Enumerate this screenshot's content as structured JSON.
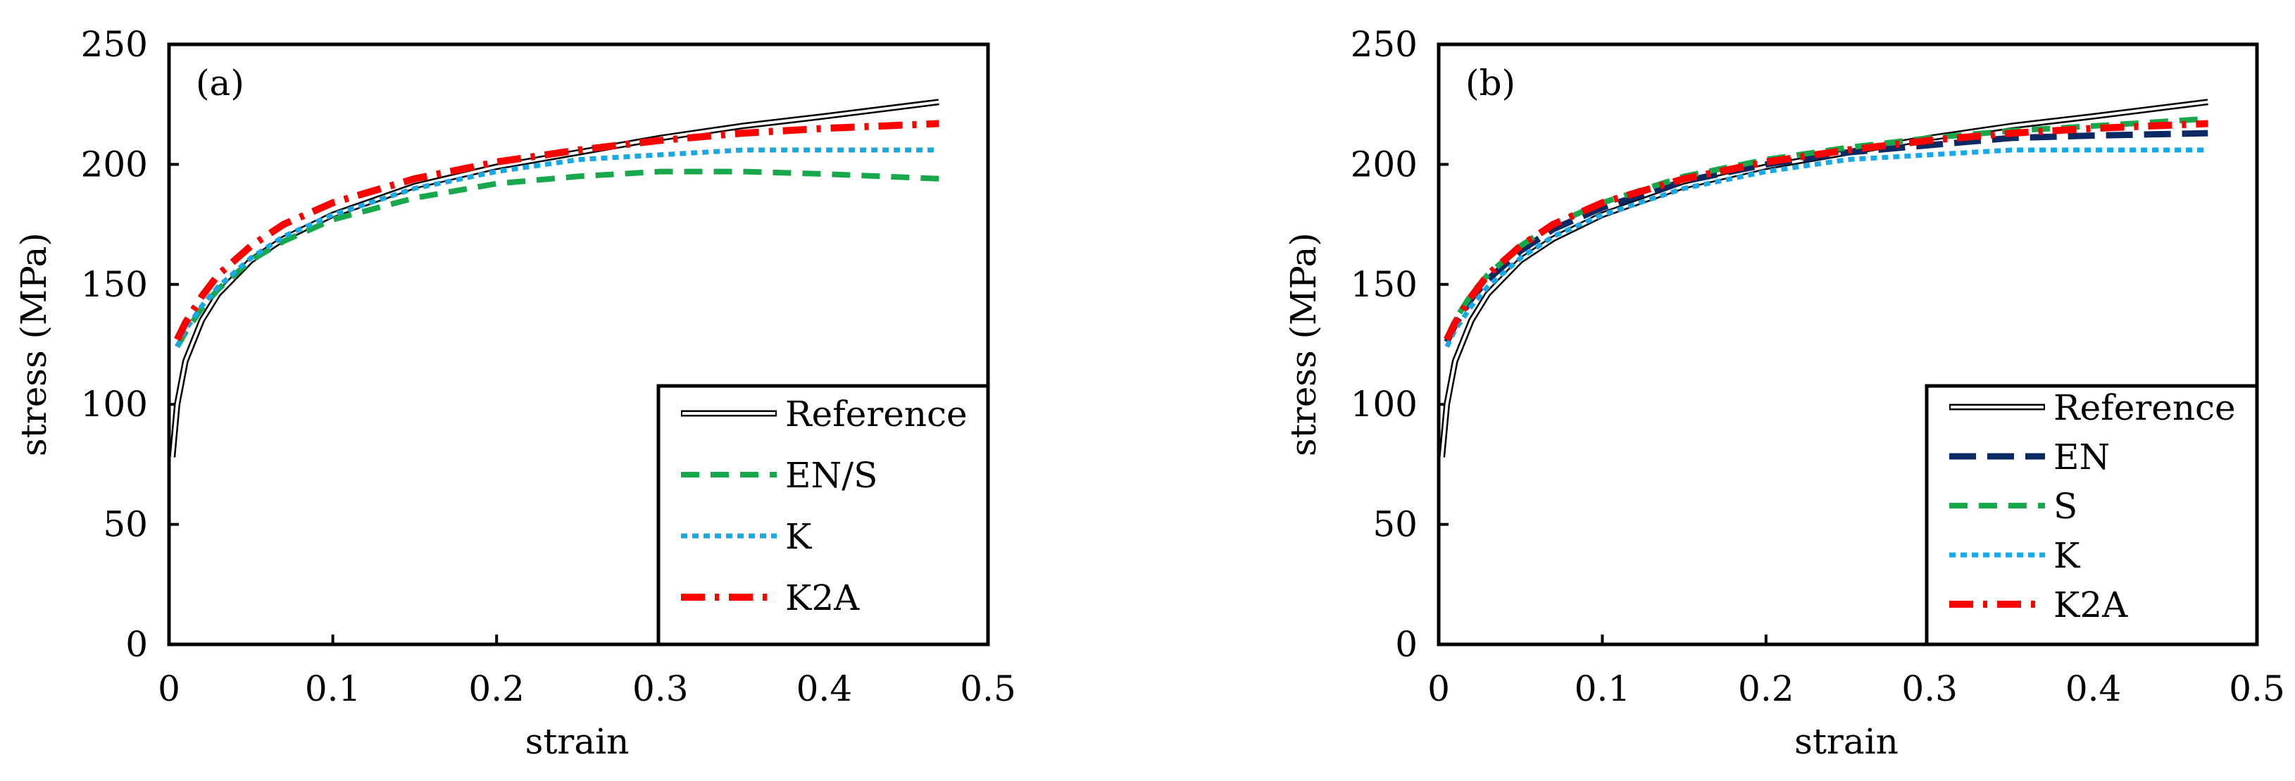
{
  "colors": {
    "reference": "#000000",
    "en": "#0b2a63",
    "ens": "#17a84c",
    "s": "#17a84c",
    "k": "#19a8e6",
    "k2a": "#ff0000"
  },
  "chart_data": [
    {
      "type": "line",
      "panel_label": "(a)",
      "xlabel": "strain",
      "ylabel": "stress (MPa)",
      "xlim": [
        0,
        0.5
      ],
      "ylim": [
        0,
        250
      ],
      "xticks": [
        0,
        0.1,
        0.2,
        0.3,
        0.4,
        0.5
      ],
      "yticks": [
        0,
        50,
        100,
        150,
        200,
        250
      ],
      "xtick_labels": [
        "0",
        "0.1",
        "0.2",
        "0.3",
        "0.4",
        "0.5"
      ],
      "ytick_labels": [
        "0",
        "50",
        "100",
        "150",
        "200",
        "250"
      ],
      "legend_position": "bottom-right",
      "series": [
        {
          "name": "Reference",
          "style": "double",
          "color_key": "reference",
          "x": [
            0.002,
            0.005,
            0.01,
            0.02,
            0.03,
            0.05,
            0.07,
            0.1,
            0.15,
            0.2,
            0.25,
            0.3,
            0.35,
            0.4,
            0.47
          ],
          "y": [
            78,
            100,
            118,
            135,
            146,
            160,
            169,
            179,
            191,
            199,
            205,
            211,
            216,
            220,
            226
          ]
        },
        {
          "name": "EN/S",
          "style": "dash",
          "color_key": "ens",
          "x": [
            0.005,
            0.01,
            0.02,
            0.03,
            0.05,
            0.07,
            0.1,
            0.15,
            0.2,
            0.25,
            0.3,
            0.35,
            0.4,
            0.47
          ],
          "y": [
            124,
            130,
            140,
            148,
            160,
            168,
            177,
            186,
            192,
            195,
            197,
            197,
            196,
            194
          ]
        },
        {
          "name": "K",
          "style": "dot",
          "color_key": "k",
          "x": [
            0.005,
            0.01,
            0.02,
            0.03,
            0.05,
            0.07,
            0.1,
            0.15,
            0.2,
            0.25,
            0.3,
            0.35,
            0.4,
            0.47
          ],
          "y": [
            124,
            131,
            141,
            149,
            161,
            170,
            179,
            190,
            197,
            202,
            204,
            206,
            206,
            206
          ]
        },
        {
          "name": "K2A",
          "style": "dashdot",
          "color_key": "k2a",
          "x": [
            0.005,
            0.01,
            0.02,
            0.03,
            0.05,
            0.07,
            0.1,
            0.15,
            0.2,
            0.25,
            0.3,
            0.35,
            0.4,
            0.47
          ],
          "y": [
            127,
            134,
            145,
            154,
            166,
            175,
            184,
            194,
            201,
            206,
            210,
            213,
            215,
            217
          ]
        }
      ]
    },
    {
      "type": "line",
      "panel_label": "(b)",
      "xlabel": "strain",
      "ylabel": "stress (MPa)",
      "xlim": [
        0,
        0.5
      ],
      "ylim": [
        0,
        250
      ],
      "xticks": [
        0,
        0.1,
        0.2,
        0.3,
        0.4,
        0.5
      ],
      "yticks": [
        0,
        50,
        100,
        150,
        200,
        250
      ],
      "xtick_labels": [
        "0",
        "0.1",
        "0.2",
        "0.3",
        "0.4",
        "0.5"
      ],
      "ytick_labels": [
        "0",
        "50",
        "100",
        "150",
        "200",
        "250"
      ],
      "legend_position": "bottom-right",
      "series": [
        {
          "name": "Reference",
          "style": "double",
          "color_key": "reference",
          "x": [
            0.002,
            0.005,
            0.01,
            0.02,
            0.03,
            0.05,
            0.07,
            0.1,
            0.15,
            0.2,
            0.25,
            0.3,
            0.35,
            0.4,
            0.47
          ],
          "y": [
            78,
            100,
            118,
            135,
            146,
            160,
            169,
            179,
            191,
            199,
            205,
            211,
            216,
            220,
            226
          ]
        },
        {
          "name": "EN",
          "style": "longdash",
          "color_key": "en",
          "x": [
            0.005,
            0.01,
            0.02,
            0.03,
            0.05,
            0.07,
            0.1,
            0.15,
            0.2,
            0.25,
            0.3,
            0.35,
            0.4,
            0.47
          ],
          "y": [
            126,
            133,
            144,
            152,
            164,
            173,
            182,
            193,
            200,
            205,
            208,
            211,
            212,
            213
          ]
        },
        {
          "name": "S",
          "style": "dash",
          "color_key": "s",
          "x": [
            0.005,
            0.01,
            0.02,
            0.03,
            0.05,
            0.07,
            0.1,
            0.15,
            0.2,
            0.25,
            0.3,
            0.35,
            0.4,
            0.47
          ],
          "y": [
            127,
            135,
            146,
            154,
            166,
            175,
            184,
            195,
            202,
            207,
            211,
            214,
            216,
            219
          ]
        },
        {
          "name": "K",
          "style": "dot",
          "color_key": "k",
          "x": [
            0.005,
            0.01,
            0.02,
            0.03,
            0.05,
            0.07,
            0.1,
            0.15,
            0.2,
            0.25,
            0.3,
            0.35,
            0.4,
            0.47
          ],
          "y": [
            124,
            131,
            141,
            149,
            161,
            170,
            179,
            190,
            197,
            202,
            204,
            206,
            206,
            206
          ]
        },
        {
          "name": "K2A",
          "style": "dashdot",
          "color_key": "k2a",
          "x": [
            0.005,
            0.01,
            0.02,
            0.03,
            0.05,
            0.07,
            0.1,
            0.15,
            0.2,
            0.25,
            0.3,
            0.35,
            0.4,
            0.47
          ],
          "y": [
            127,
            134,
            145,
            154,
            166,
            175,
            184,
            194,
            201,
            206,
            210,
            213,
            215,
            217
          ]
        }
      ]
    }
  ]
}
